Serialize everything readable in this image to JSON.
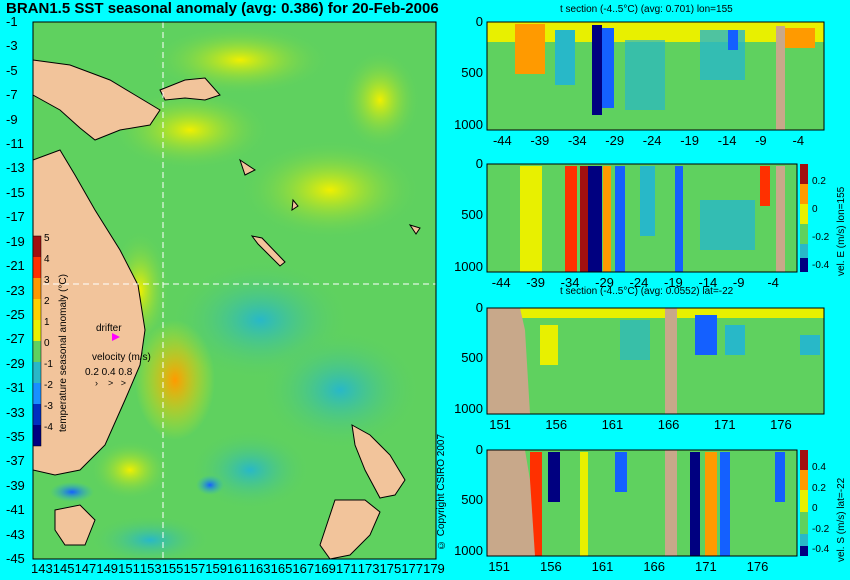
{
  "main_title": "BRAN1.5 SST seasonal anomaly (avg: 0.386) for 20-Feb-2006",
  "copyright": "© Copyright CSIRO 2007",
  "colors": {
    "background": "#00ffff",
    "land": "#f2c49b",
    "dash": "#ffffff",
    "anomaly_base": "#5fd15f"
  },
  "map": {
    "lat_ticks": [
      "-1",
      "-3",
      "-5",
      "-7",
      "-9",
      "-11",
      "-13",
      "-15",
      "-17",
      "-19",
      "-21",
      "-23",
      "-25",
      "-27",
      "-29",
      "-31",
      "-33",
      "-35",
      "-37",
      "-39",
      "-41",
      "-43",
      "-45"
    ],
    "lon_ticks": [
      "143",
      "145",
      "147",
      "149",
      "151",
      "153",
      "155",
      "157",
      "159",
      "161",
      "163",
      "165",
      "167",
      "169",
      "171",
      "173",
      "175",
      "177",
      "179"
    ],
    "colorbar_ticks": [
      "5",
      "4",
      "3",
      "2",
      "1",
      "0",
      "-1",
      "-2",
      "-3",
      "-4"
    ],
    "colorbar_label": "temperature seasonal anomaly (°C)",
    "drifter_label": "drifter",
    "velocity_title": "velocity (m/s)",
    "velocity_values": "0.2 0.4 0.8"
  },
  "panels": [
    {
      "title": "t section (-4..5°C) (avg: 0.701) lon=155",
      "xticks": [
        "-44",
        "-39",
        "-34",
        "-29",
        "-24",
        "-19",
        "-14",
        "-9",
        "-4"
      ],
      "yticks": [
        "0",
        "500",
        "1000"
      ]
    },
    {
      "title": "",
      "xticks": [
        "-44",
        "-39",
        "-34",
        "-29",
        "-24",
        "-19",
        "-14",
        "-9",
        "-4"
      ],
      "yticks": [
        "0",
        "500",
        "1000"
      ],
      "side_label": "vel. E (m/s) lon=155",
      "cbar_ticks": [
        "0.2",
        "0",
        "-0.2",
        "-0.4"
      ]
    },
    {
      "title": "t section (-4..5°C) (avg: 0.0552) lat=-22",
      "xticks": [
        "151",
        "156",
        "161",
        "166",
        "171",
        "176"
      ],
      "yticks": [
        "0",
        "500",
        "1000"
      ]
    },
    {
      "title": "",
      "xticks": [
        "151",
        "156",
        "161",
        "166",
        "171",
        "176"
      ],
      "yticks": [
        "0",
        "500",
        "1000"
      ],
      "side_label": "vel. S (m/s) lat=-22",
      "cbar_ticks": [
        "0.4",
        "0.2",
        "0",
        "-0.2",
        "-0.4"
      ]
    }
  ],
  "chart_data": [
    {
      "type": "heatmap",
      "title": "BRAN1.5 SST seasonal anomaly (avg: 0.386) for 20-Feb-2006",
      "xlabel": "",
      "ylabel": "",
      "xlim": [
        143,
        180
      ],
      "ylim": [
        -45,
        0
      ],
      "color_range": [
        -4,
        5
      ],
      "colorbar_label": "temperature seasonal anomaly (°C)"
    },
    {
      "type": "heatmap",
      "title": "t section (-4..5°C) (avg: 0.701) lon=155",
      "xlim": [
        -46,
        -1
      ],
      "ylim": [
        1050,
        0
      ]
    },
    {
      "type": "heatmap",
      "title": "",
      "xlim": [
        -46,
        -1
      ],
      "ylim": [
        1050,
        0
      ],
      "colorbar_label": "vel. E (m/s) lon=155",
      "color_range": [
        -0.4,
        0.4
      ]
    },
    {
      "type": "heatmap",
      "title": "t section (-4..5°C) (avg: 0.0552) lat=-22",
      "xlim": [
        150,
        180
      ],
      "ylim": [
        1050,
        0
      ]
    },
    {
      "type": "heatmap",
      "title": "",
      "xlim": [
        150,
        180
      ],
      "ylim": [
        1050,
        0
      ],
      "colorbar_label": "vel. S (m/s) lat=-22",
      "color_range": [
        -0.4,
        0.4
      ]
    }
  ]
}
